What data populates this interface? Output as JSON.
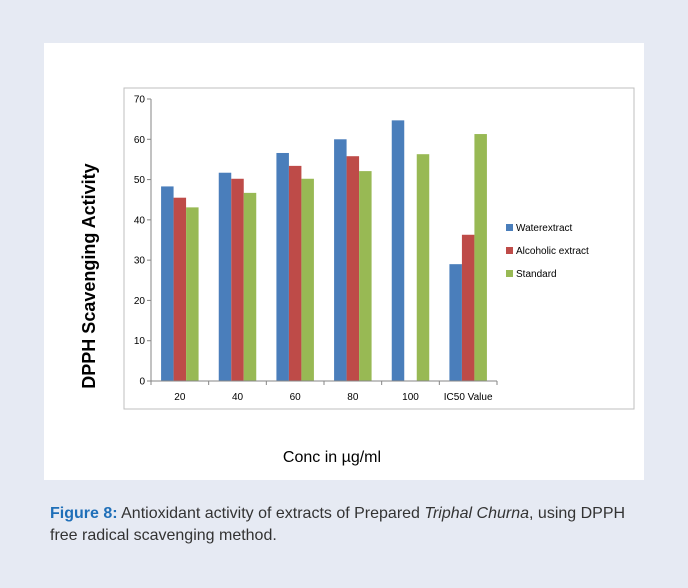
{
  "chart_data": {
    "type": "bar",
    "categories": [
      "20",
      "40",
      "60",
      "80",
      "100",
      "IC50 Value"
    ],
    "series": [
      {
        "name": "Waterextract",
        "color": "#4a7ebb",
        "values": [
          48.3,
          51.7,
          56.6,
          60.0,
          64.7,
          29.0
        ]
      },
      {
        "name": "Alcoholic extract",
        "color": "#be4b48",
        "values": [
          45.5,
          50.2,
          53.4,
          55.8,
          null,
          36.3
        ]
      },
      {
        "name": "Standard",
        "color": "#98b954",
        "values": [
          43.1,
          46.7,
          50.2,
          52.1,
          56.3,
          61.3
        ]
      }
    ],
    "xlabel": "Conc in µg/ml",
    "ylabel": "DPPH  Scavenging Activity",
    "ylim": [
      0,
      70
    ],
    "yticks": [
      0,
      10,
      20,
      30,
      40,
      50,
      60,
      70
    ],
    "grid": false,
    "legend": "right"
  },
  "caption": {
    "label": "Figure 8:",
    "text_before": " Antioxidant activity of extracts of Prepared ",
    "italic": "Triphal Churna",
    "text_after": ", using DPPH free radical scavenging method."
  }
}
